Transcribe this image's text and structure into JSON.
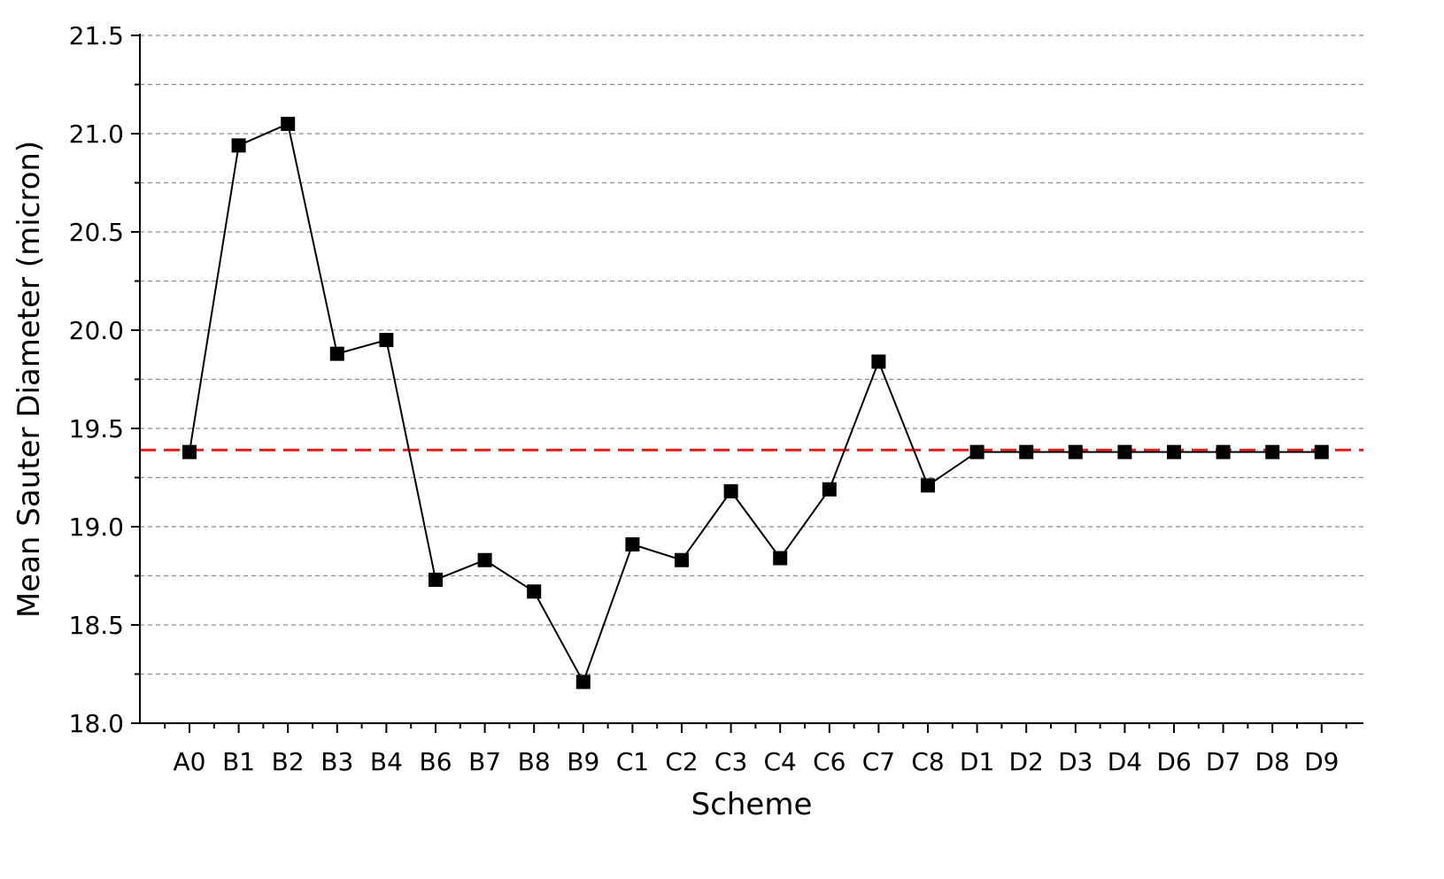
{
  "chart_data": {
    "type": "line",
    "title": "",
    "xlabel": "Scheme",
    "ylabel": "Mean Sauter Diameter (micron)",
    "ylim": [
      18.0,
      21.5
    ],
    "yticks": [
      "18.0",
      "18.5",
      "19.0",
      "19.5",
      "20.0",
      "20.5",
      "21.0",
      "21.5"
    ],
    "grid": "horizontal dashed at every 0.25",
    "categories": [
      "A0",
      "B1",
      "B2",
      "B3",
      "B4",
      "B6",
      "B7",
      "B8",
      "B9",
      "C1",
      "C2",
      "C3",
      "C4",
      "C6",
      "C7",
      "C8",
      "D1",
      "D2",
      "D3",
      "D4",
      "D6",
      "D7",
      "D8",
      "D9"
    ],
    "series": [
      {
        "values": [
          19.38,
          20.94,
          21.05,
          19.88,
          19.95,
          18.73,
          18.83,
          18.67,
          18.21,
          18.91,
          18.83,
          19.18,
          18.84,
          19.19,
          19.84,
          19.21,
          19.38,
          19.38,
          19.38,
          19.38,
          19.38,
          19.38,
          19.38,
          19.38
        ],
        "color": "#000000",
        "marker": "square"
      }
    ],
    "reference_line": {
      "value": 19.39,
      "color": "#e8211d",
      "style": "dashed"
    }
  }
}
